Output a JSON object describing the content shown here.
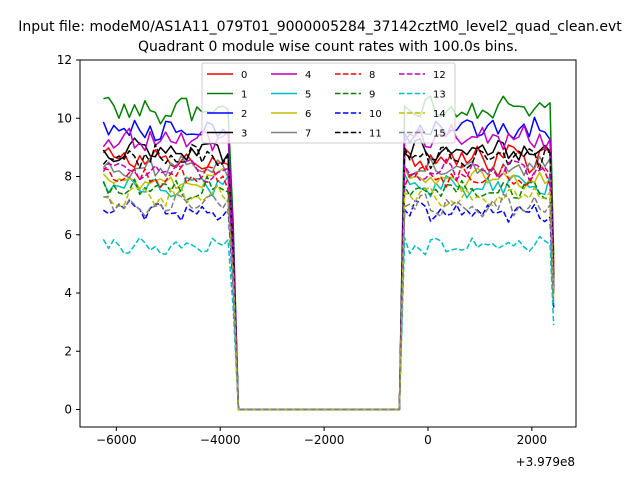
{
  "chart_data": {
    "type": "line",
    "suptitle": "Input file: modeM0/AS1A11_079T01_9000005284_37142cztM0_level2_quad_clean.evt",
    "title": "Quadrant 0 module wise count rates with 100.0s bins.",
    "xlabel": "",
    "ylabel": "",
    "x_offset_label": "+3.979e8",
    "xlim": [
      -6700,
      2850
    ],
    "ylim": [
      -0.6,
      12
    ],
    "xticks": [
      -6000,
      -4000,
      -2000,
      0,
      2000
    ],
    "xtick_labels": [
      "−6000",
      "−4000",
      "−2000",
      "0",
      "2000"
    ],
    "yticks": [
      0,
      2,
      4,
      6,
      8,
      10,
      12
    ],
    "ytick_labels": [
      "0",
      "2",
      "4",
      "6",
      "8",
      "10",
      "12"
    ],
    "grid": false,
    "legend": {
      "placement": "top-center",
      "ncol": 4
    },
    "x": [
      -6250,
      -6150,
      -6050,
      -5950,
      -5850,
      -5750,
      -5650,
      -5550,
      -5450,
      -5350,
      -5250,
      -5150,
      -5050,
      -4950,
      -4850,
      -4750,
      -4650,
      -4550,
      -4450,
      -4350,
      -4250,
      -4150,
      -4050,
      -3950,
      -3850,
      -3750,
      -3650,
      -3550,
      -3450,
      -3350,
      -3250,
      -3150,
      -3050,
      -2950,
      -2850,
      -2750,
      -2650,
      -2550,
      -2450,
      -2350,
      -2250,
      -2150,
      -2050,
      -1950,
      -1850,
      -1750,
      -1650,
      -1550,
      -1450,
      -1350,
      -1250,
      -1150,
      -1050,
      -950,
      -850,
      -750,
      -650,
      -550,
      -450,
      -350,
      -250,
      -150,
      -50,
      50,
      150,
      250,
      350,
      450,
      550,
      650,
      750,
      850,
      950,
      1050,
      1150,
      1250,
      1350,
      1450,
      1550,
      1650,
      1750,
      1850,
      1950,
      2050,
      2150,
      2250,
      2350,
      2420
    ],
    "profile": {
      "on_ranges": [
        [
          -6250,
          -3850
        ],
        [
          -450,
          2350
        ]
      ],
      "ramp_edge_x": -3750,
      "last_x": 2420,
      "zero_from": -3650,
      "zero_to": -550
    },
    "series": [
      {
        "name": "0",
        "color": "#ff0000",
        "dash": "solid",
        "level": 8.6,
        "amp": 0.35,
        "end": 5.0
      },
      {
        "name": "1",
        "color": "#008000",
        "dash": "solid",
        "level": 10.3,
        "amp": 0.35,
        "end": 5.3
      },
      {
        "name": "2",
        "color": "#0000ff",
        "dash": "solid",
        "level": 9.6,
        "amp": 0.3,
        "end": 4.3
      },
      {
        "name": "3",
        "color": "#000000",
        "dash": "solid",
        "level": 8.9,
        "amp": 0.3,
        "end": 4.5
      },
      {
        "name": "4",
        "color": "#bf00bf",
        "dash": "solid",
        "level": 9.3,
        "amp": 0.35,
        "end": 4.8
      },
      {
        "name": "5",
        "color": "#00bfbf",
        "dash": "solid",
        "level": 7.7,
        "amp": 0.3,
        "end": 4.0
      },
      {
        "name": "6",
        "color": "#bfbf00",
        "dash": "solid",
        "level": 7.9,
        "amp": 0.3,
        "end": 4.1
      },
      {
        "name": "7",
        "color": "#808080",
        "dash": "solid",
        "level": 8.3,
        "amp": 0.3,
        "end": 4.2
      },
      {
        "name": "8",
        "color": "#ff0000",
        "dash": "dashed",
        "level": 8.0,
        "amp": 0.3,
        "end": 4.0
      },
      {
        "name": "9",
        "color": "#008000",
        "dash": "dashed",
        "level": 7.6,
        "amp": 0.3,
        "end": 4.0
      },
      {
        "name": "10",
        "color": "#0000ff",
        "dash": "dashed",
        "level": 6.8,
        "amp": 0.25,
        "end": 3.5
      },
      {
        "name": "11",
        "color": "#000000",
        "dash": "dashed",
        "level": 8.7,
        "amp": 0.3,
        "end": 4.6
      },
      {
        "name": "12",
        "color": "#bf00bf",
        "dash": "dashed",
        "level": 8.2,
        "amp": 0.3,
        "end": 4.2
      },
      {
        "name": "13",
        "color": "#00bfbf",
        "dash": "dashed",
        "level": 5.6,
        "amp": 0.25,
        "end": 2.9
      },
      {
        "name": "14",
        "color": "#bfbf00",
        "dash": "dashed",
        "level": 7.3,
        "amp": 0.3,
        "end": 3.8
      },
      {
        "name": "15",
        "color": "#808080",
        "dash": "dashed",
        "level": 7.0,
        "amp": 0.35,
        "end": 3.6
      }
    ]
  }
}
